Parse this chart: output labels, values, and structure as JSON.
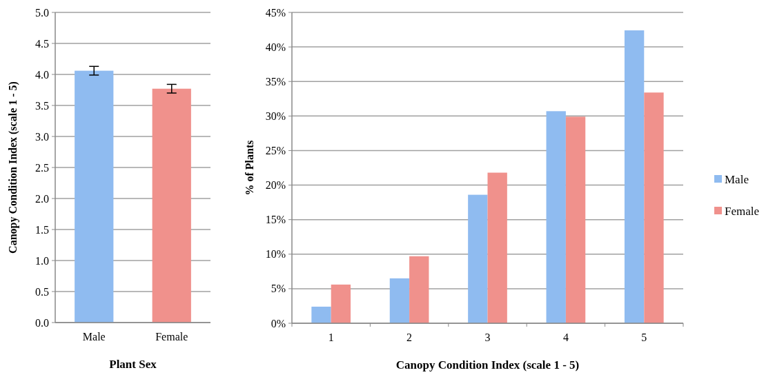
{
  "chart_data": [
    {
      "type": "bar",
      "xlabel": "Plant Sex",
      "ylabel": "Canopy Condition Index  (scale 1 - 5)",
      "categories": [
        "Male",
        "Female"
      ],
      "values": [
        4.06,
        3.77
      ],
      "colors": [
        "#8fbbf0",
        "#f0918c"
      ],
      "errors": [
        0.07,
        0.07
      ],
      "ylim": [
        0,
        5
      ],
      "yticks": [
        {
          "value": 0,
          "label": "0.0"
        },
        {
          "value": 0.5,
          "label": "0.5"
        },
        {
          "value": 1,
          "label": "1.0"
        },
        {
          "value": 1.5,
          "label": "1.5"
        },
        {
          "value": 2,
          "label": "2.0"
        },
        {
          "value": 2.5,
          "label": "2.5"
        },
        {
          "value": 3,
          "label": "3.0"
        },
        {
          "value": 3.5,
          "label": "3.5"
        },
        {
          "value": 4,
          "label": "4.0"
        },
        {
          "value": 4.5,
          "label": "4.5"
        },
        {
          "value": 5,
          "label": "5.0"
        }
      ],
      "grid": "y"
    },
    {
      "type": "bar",
      "xlabel": "Canopy Condition Index (scale 1 - 5)",
      "ylabel": "% of Plants",
      "categories": [
        "1",
        "2",
        "3",
        "4",
        "5"
      ],
      "series": [
        {
          "name": "Male",
          "color": "#8fbbf0",
          "values": [
            2.4,
            6.5,
            18.6,
            30.7,
            42.4
          ]
        },
        {
          "name": "Female",
          "color": "#f0918c",
          "values": [
            5.6,
            9.7,
            21.8,
            29.9,
            33.4
          ]
        }
      ],
      "ylim": [
        0,
        45
      ],
      "yticks": [
        {
          "value": 0,
          "label": "0%"
        },
        {
          "value": 5,
          "label": "5%"
        },
        {
          "value": 10,
          "label": "10%"
        },
        {
          "value": 15,
          "label": "15%"
        },
        {
          "value": 20,
          "label": "20%"
        },
        {
          "value": 25,
          "label": "25%"
        },
        {
          "value": 30,
          "label": "30%"
        },
        {
          "value": 35,
          "label": "35%"
        },
        {
          "value": 40,
          "label": "40%"
        },
        {
          "value": 45,
          "label": "45%"
        }
      ],
      "grid": "y",
      "legend": "right"
    }
  ]
}
